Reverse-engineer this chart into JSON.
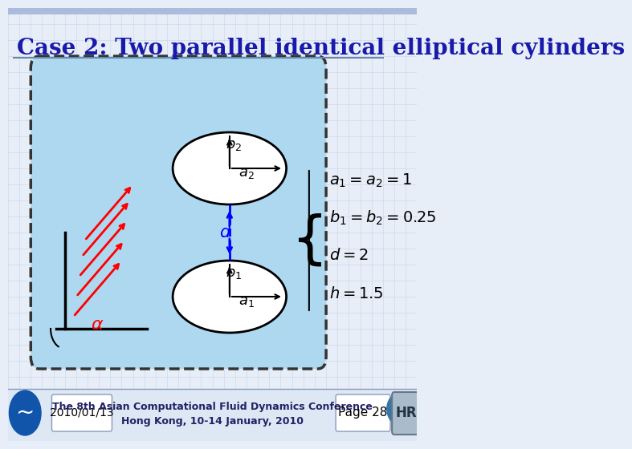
{
  "title": "Case 2: Two parallel identical elliptical cylinders",
  "title_color": "#1a1aaa",
  "title_fontsize": 20,
  "bg_color": "#f0f4ff",
  "slide_bg": "#e8eef8",
  "box_bg": "#aaccee",
  "box_edge": "#333333",
  "footer_date": "2010/01/13",
  "footer_conf_line1": "The 8th Asian Computational Fluid Dynamics Conference",
  "footer_conf_line2": "Hong Kong, 10-14 January, 2010",
  "footer_page": "Page 28",
  "equations": [
    "a_1 = a_2 = 1",
    "b_1 = b_2 = 0.25",
    "d = 2",
    "h = 1.5"
  ]
}
